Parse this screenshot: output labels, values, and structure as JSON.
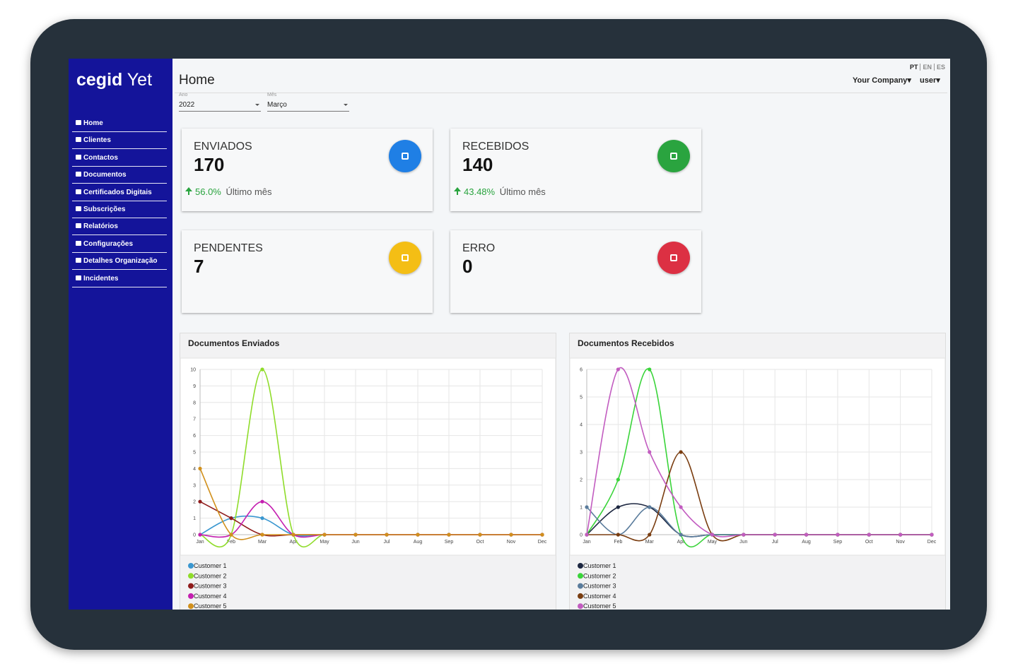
{
  "logo": {
    "brand": "cegid",
    "product": "Yet"
  },
  "nav": [
    "Home",
    "Clientes",
    "Contactos",
    "Documentos",
    "Certificados Digitais",
    "Subscrições",
    "Relatórios",
    "Configurações",
    "Detalhes Organização",
    "Incidentes"
  ],
  "languages": [
    "PT",
    "EN",
    "ES"
  ],
  "header": {
    "title": "Home",
    "company": "Your Company",
    "user": "user"
  },
  "filters": [
    {
      "label": "Ano",
      "value": "2022"
    },
    {
      "label": "Mês",
      "value": "Março"
    }
  ],
  "cards": [
    {
      "title": "ENVIADOS",
      "value": "170",
      "change": "56.0%",
      "period": "Último mês",
      "color": "#1f7fe5"
    },
    {
      "title": "RECEBIDOS",
      "value": "140",
      "change": "43.48%",
      "period": "Último mês",
      "color": "#2aa43f"
    },
    {
      "title": "PENDENTES",
      "value": "7",
      "color": "#f4be15"
    },
    {
      "title": "ERRO",
      "value": "0",
      "color": "#dc3043"
    }
  ],
  "chart_data": [
    {
      "type": "line",
      "title": "Documentos Enviados",
      "categories": [
        "Jan",
        "Feb",
        "Mar",
        "Apr",
        "May",
        "Jun",
        "Jul",
        "Aug",
        "Sep",
        "Oct",
        "Nov",
        "Dec"
      ],
      "ylim": [
        0,
        10
      ],
      "yticks": [
        0,
        1,
        2,
        3,
        4,
        5,
        6,
        7,
        8,
        9,
        10
      ],
      "grid": true,
      "series": [
        {
          "name": "Customer 1",
          "color": "#3a97d0",
          "values": [
            0,
            1,
            1,
            0,
            0,
            0,
            0,
            0,
            0,
            0,
            0,
            0
          ]
        },
        {
          "name": "Customer 2",
          "color": "#8fdc2a",
          "values": [
            0,
            0,
            10,
            0,
            0,
            0,
            0,
            0,
            0,
            0,
            0,
            0
          ]
        },
        {
          "name": "Customer 3",
          "color": "#8f1b1b",
          "values": [
            2,
            1,
            0,
            0,
            0,
            0,
            0,
            0,
            0,
            0,
            0,
            0
          ]
        },
        {
          "name": "Customer 4",
          "color": "#c41fb0",
          "values": [
            0,
            0,
            2,
            0,
            0,
            0,
            0,
            0,
            0,
            0,
            0,
            0
          ]
        },
        {
          "name": "Customer 5",
          "color": "#d1901c",
          "values": [
            4,
            0,
            0,
            0,
            0,
            0,
            0,
            0,
            0,
            0,
            0,
            0
          ]
        }
      ]
    },
    {
      "type": "line",
      "title": "Documentos Recebidos",
      "categories": [
        "Jan",
        "Feb",
        "Mar",
        "Apr",
        "May",
        "Jun",
        "Jul",
        "Aug",
        "Sep",
        "Oct",
        "Nov",
        "Dec"
      ],
      "ylim": [
        0,
        6
      ],
      "yticks": [
        0,
        1,
        2,
        3,
        4,
        5,
        6
      ],
      "grid": true,
      "series": [
        {
          "name": "Customer 1",
          "color": "#1c2640",
          "values": [
            0,
            1,
            1,
            0,
            0,
            0,
            0,
            0,
            0,
            0,
            0,
            0
          ]
        },
        {
          "name": "Customer 2",
          "color": "#3ad43a",
          "values": [
            0,
            2,
            6,
            0,
            0,
            0,
            0,
            0,
            0,
            0,
            0,
            0
          ]
        },
        {
          "name": "Customer 3",
          "color": "#5a7c9c",
          "values": [
            1,
            0,
            1,
            0,
            0,
            0,
            0,
            0,
            0,
            0,
            0,
            0
          ]
        },
        {
          "name": "Customer 4",
          "color": "#7a3d10",
          "values": [
            0,
            0,
            0,
            3,
            0,
            0,
            0,
            0,
            0,
            0,
            0,
            0
          ]
        },
        {
          "name": "Customer 5",
          "color": "#c25cc0",
          "values": [
            0,
            6,
            3,
            1,
            0,
            0,
            0,
            0,
            0,
            0,
            0,
            0
          ]
        }
      ]
    }
  ]
}
